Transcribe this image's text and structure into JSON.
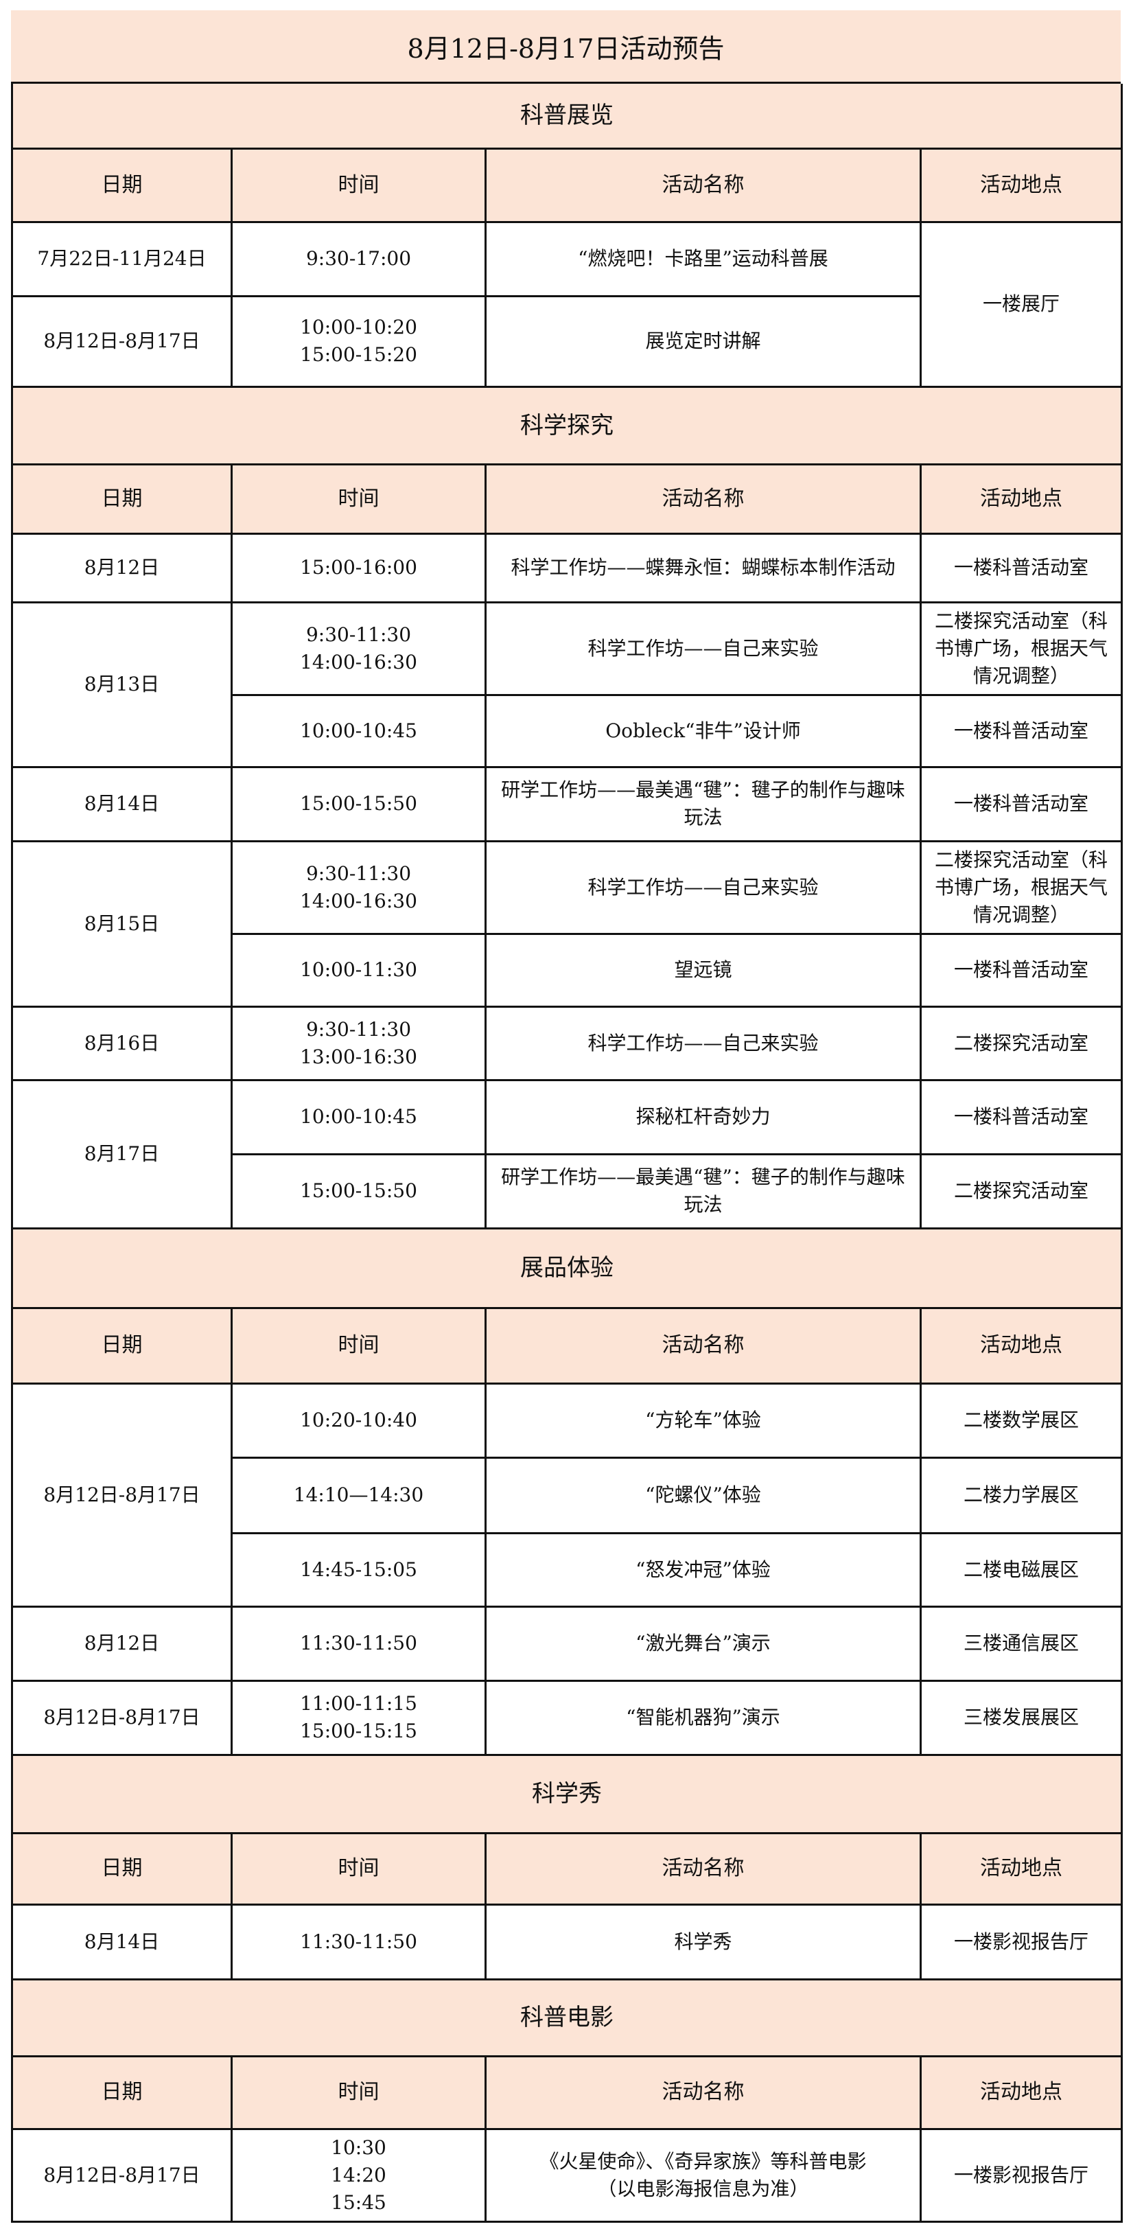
{
  "title": "8月12日-8月17日活动预告",
  "columns": [
    "日期",
    "时间",
    "活动名称",
    "活动地点"
  ],
  "colors": {
    "header_bg": "#fce4d6",
    "border": "#111111"
  },
  "sections": [
    {
      "name": "科普展览",
      "rows": [
        {
          "date": "7月22日-11月24日",
          "time": "9:30-17:00",
          "activity": "“燃烧吧！卡路里”运动科普展",
          "location": "一楼展厅",
          "location_rowspan": 2
        },
        {
          "date": "8月12日-8月17日",
          "time": "10:00-10:20\n15:00-15:20",
          "activity": "展览定时讲解"
        }
      ]
    },
    {
      "name": "科学探究",
      "rows": [
        {
          "date": "8月12日",
          "time": "15:00-16:00",
          "activity": "科学工作坊——蝶舞永恒：蝴蝶标本制作活动",
          "location": "一楼科普活动室"
        },
        {
          "date": "8月13日",
          "date_rowspan": 2,
          "time": "9:30-11:30\n14:00-16:30",
          "activity": "科学工作坊——自己来实验",
          "location": "二楼探究活动室（科书博广场，根据天气情况调整）"
        },
        {
          "time": "10:00-10:45",
          "activity": "Oobleck“非牛”设计师",
          "location": "一楼科普活动室"
        },
        {
          "date": "8月14日",
          "time": "15:00-15:50",
          "activity": "研学工作坊——最美遇“毽”：毽子的制作与趣味玩法",
          "location": "一楼科普活动室"
        },
        {
          "date": "8月15日",
          "date_rowspan": 2,
          "time": "9:30-11:30\n14:00-16:30",
          "activity": "科学工作坊——自己来实验",
          "location": "二楼探究活动室（科书博广场，根据天气情况调整）"
        },
        {
          "time": "10:00-11:30",
          "activity": "望远镜",
          "location": "一楼科普活动室"
        },
        {
          "date": "8月16日",
          "time": "9:30-11:30\n13:00-16:30",
          "activity": "科学工作坊——自己来实验",
          "location": "二楼探究活动室"
        },
        {
          "date": "8月17日",
          "date_rowspan": 2,
          "time": "10:00-10:45",
          "activity": "探秘杠杆奇妙力",
          "location": "一楼科普活动室"
        },
        {
          "time": "15:00-15:50",
          "activity": "研学工作坊——最美遇“毽”：毽子的制作与趣味玩法",
          "location": "二楼探究活动室"
        }
      ]
    },
    {
      "name": "展品体验",
      "rows": [
        {
          "date": "8月12日-8月17日",
          "date_rowspan": 3,
          "time": "10:20-10:40",
          "activity": "“方轮车”体验",
          "location": "二楼数学展区"
        },
        {
          "time": "14:10—14:30",
          "activity": "“陀螺仪”体验",
          "location": "二楼力学展区"
        },
        {
          "time": "14:45-15:05",
          "activity": "“怒发冲冠”体验",
          "location": "二楼电磁展区"
        },
        {
          "date": "8月12日",
          "time": "11:30-11:50",
          "activity": "“激光舞台”演示",
          "location": "三楼通信展区"
        },
        {
          "date": "8月12日-8月17日",
          "time": "11:00-11:15\n15:00-15:15",
          "activity": "“智能机器狗”演示",
          "location": "三楼发展展区"
        }
      ]
    },
    {
      "name": "科学秀",
      "rows": [
        {
          "date": "8月14日",
          "time": "11:30-11:50",
          "activity": "科学秀",
          "location": "一楼影视报告厅"
        }
      ]
    },
    {
      "name": "科普电影",
      "rows": [
        {
          "date": "8月12日-8月17日",
          "time": "10:30\n14:20\n15:45",
          "activity": "《火星使命》、《奇异家族》等科普电影\n（以电影海报信息为准）",
          "location": "一楼影视报告厅"
        }
      ]
    }
  ]
}
